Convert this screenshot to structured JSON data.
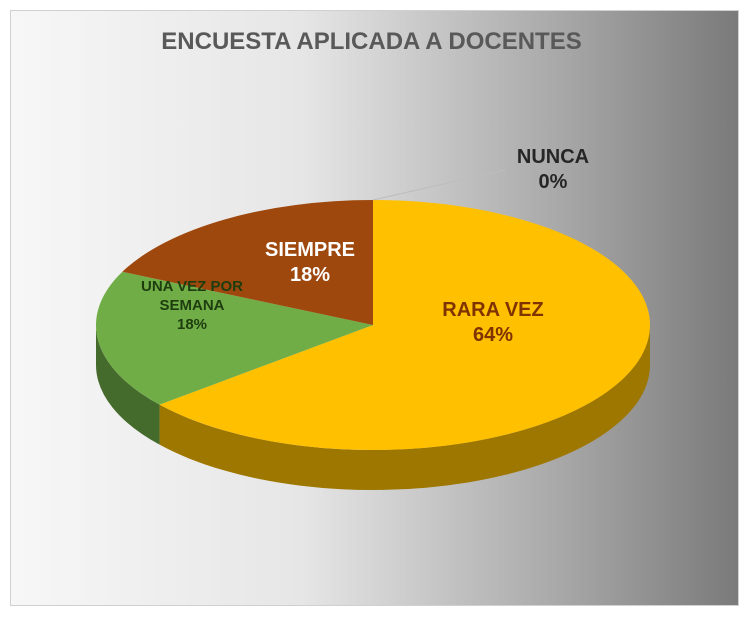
{
  "chart_data": {
    "type": "pie",
    "title": "ENCUESTA APLICADA A DOCENTES",
    "categories": [
      "NUNCA",
      "RARA VEZ",
      "UNA VEZ POR SEMANA",
      "SIEMPRE"
    ],
    "values": [
      0,
      64,
      18,
      18
    ],
    "value_labels": [
      "0%",
      "64%",
      "18%",
      "18%"
    ],
    "colors": [
      "#a5a5a5",
      "#ffc000",
      "#70ad47",
      "#9e480e"
    ]
  }
}
